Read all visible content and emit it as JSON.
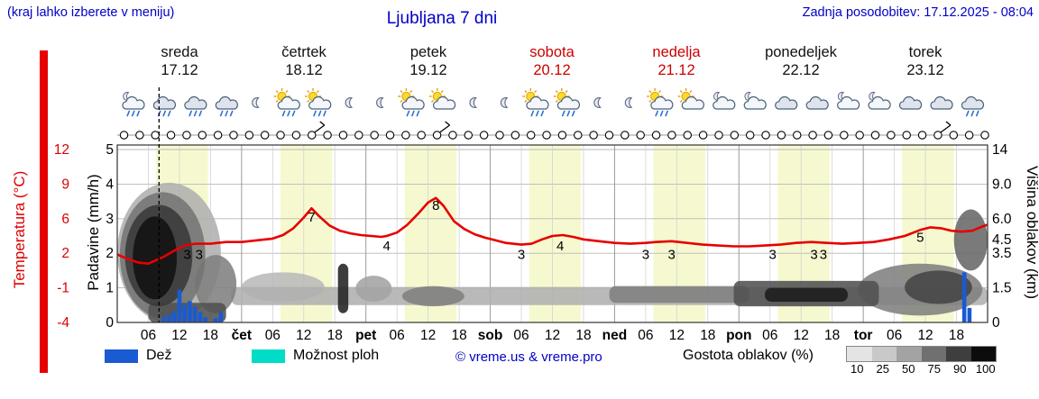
{
  "header": {
    "note": "(kraj lahko izberete v meniju)",
    "title": "Ljubljana 7 dni",
    "updated": "Zadnja posodobitev: 17.12.2025 - 08:04"
  },
  "days": [
    {
      "name": "sreda",
      "date": "17.12",
      "weekend": false
    },
    {
      "name": "četrtek",
      "date": "18.12",
      "weekend": false
    },
    {
      "name": "petek",
      "date": "19.12",
      "weekend": false
    },
    {
      "name": "sobota",
      "date": "20.12",
      "weekend": true
    },
    {
      "name": "nedelja",
      "date": "21.12",
      "weekend": true
    },
    {
      "name": "ponedeljek",
      "date": "22.12",
      "weekend": false
    },
    {
      "name": "torek",
      "date": "23.12",
      "weekend": false
    }
  ],
  "axes": {
    "temp_label": "Temperatura (°C)",
    "temp_ticks": [
      "12",
      "9",
      "6",
      "2",
      "-1",
      "-4"
    ],
    "precip_label": "Padavine (mm/h)",
    "precip_ticks": [
      "5",
      "4",
      "3",
      "2",
      "1",
      "0"
    ],
    "cloud_label": "Višina oblakov (km)",
    "cloud_ticks": [
      "14",
      "9.0",
      "6.0",
      "4.5",
      "3.5",
      "1.5",
      "0"
    ]
  },
  "legend": {
    "rain": "Dež",
    "showers": "Možnost ploh",
    "copyright": "© vreme.us & vreme.pro",
    "cloud_cover": "Gostota oblakov (%)",
    "scale": [
      "10",
      "25",
      "50",
      "75",
      "90",
      "100"
    ]
  },
  "colors": {
    "accent_blue": "#0000c8",
    "red_text": "#dd0000",
    "temp_line": "#e60000",
    "rain_bar": "#1a5ad2",
    "showers": "#00dcc8",
    "dayband": "#f6f9cf",
    "grid_minor": "#d2d2d2",
    "grid_major": "#9a9a9a",
    "frame": "#333333",
    "scale_shades": [
      "#e4e4e4",
      "#c9c9c9",
      "#a3a3a3",
      "#707070",
      "#3e3e3e",
      "#0c0c0c"
    ]
  },
  "chart_data": {
    "type": "line",
    "x_unit": "hours from 17.12 00:00",
    "now_hour": 8.07,
    "day_band_hours": [
      7.5,
      17.5
    ],
    "time_ticks": [
      "06",
      "12",
      "18",
      "čet",
      "06",
      "12",
      "18",
      "pet",
      "06",
      "12",
      "18",
      "sob",
      "06",
      "12",
      "18",
      "ned",
      "06",
      "12",
      "18",
      "pon",
      "06",
      "12",
      "18",
      "tor",
      "06",
      "12",
      "18"
    ],
    "series": [
      {
        "name": "Temperatura (°C)",
        "points": [
          [
            0,
            1.9
          ],
          [
            2,
            1.5
          ],
          [
            4,
            1.2
          ],
          [
            6,
            1.1
          ],
          [
            7,
            1.3
          ],
          [
            9,
            1.7
          ],
          [
            11,
            2.3
          ],
          [
            13,
            2.9
          ],
          [
            15,
            3.1
          ],
          [
            18,
            3.1
          ],
          [
            21,
            3.3
          ],
          [
            24,
            3.3
          ],
          [
            27,
            3.5
          ],
          [
            30,
            3.7
          ],
          [
            32,
            4.1
          ],
          [
            34,
            4.9
          ],
          [
            36,
            6.1
          ],
          [
            37.5,
            6.9
          ],
          [
            39,
            6.2
          ],
          [
            41,
            5.2
          ],
          [
            43,
            4.6
          ],
          [
            45,
            4.3
          ],
          [
            47,
            4.1
          ],
          [
            49,
            4.0
          ],
          [
            51,
            3.9
          ],
          [
            52,
            4.0
          ],
          [
            54,
            4.4
          ],
          [
            56,
            5.3
          ],
          [
            58,
            6.4
          ],
          [
            60,
            7.4
          ],
          [
            61.5,
            7.8
          ],
          [
            63,
            7.1
          ],
          [
            65,
            5.7
          ],
          [
            67,
            4.8
          ],
          [
            69,
            4.2
          ],
          [
            71,
            3.8
          ],
          [
            73,
            3.5
          ],
          [
            75,
            3.2
          ],
          [
            78,
            3.0
          ],
          [
            80,
            3.1
          ],
          [
            82,
            3.6
          ],
          [
            84,
            4.0
          ],
          [
            86,
            4.1
          ],
          [
            88,
            3.9
          ],
          [
            90,
            3.6
          ],
          [
            93,
            3.4
          ],
          [
            96,
            3.2
          ],
          [
            99,
            3.1
          ],
          [
            102,
            3.2
          ],
          [
            104,
            3.3
          ],
          [
            107,
            3.4
          ],
          [
            110,
            3.2
          ],
          [
            113,
            3.0
          ],
          [
            116,
            2.9
          ],
          [
            119,
            2.8
          ],
          [
            122,
            2.8
          ],
          [
            125,
            2.9
          ],
          [
            128,
            3.0
          ],
          [
            131,
            3.2
          ],
          [
            134,
            3.3
          ],
          [
            137,
            3.2
          ],
          [
            140,
            3.1
          ],
          [
            143,
            3.2
          ],
          [
            146,
            3.3
          ],
          [
            149,
            3.6
          ],
          [
            152,
            4.0
          ],
          [
            155,
            4.7
          ],
          [
            157,
            5.0
          ],
          [
            159,
            4.9
          ],
          [
            161,
            4.6
          ],
          [
            163,
            4.5
          ],
          [
            165,
            4.6
          ],
          [
            167,
            5.1
          ],
          [
            168,
            5.3
          ]
        ]
      }
    ],
    "temperature_labels": [
      {
        "h": 13.5,
        "v": 3
      },
      {
        "h": 15.8,
        "v": 3
      },
      {
        "h": 37.5,
        "v": 7
      },
      {
        "h": 52,
        "v": 4
      },
      {
        "h": 61.5,
        "v": 8
      },
      {
        "h": 78,
        "v": 3
      },
      {
        "h": 85.5,
        "v": 4
      },
      {
        "h": 102,
        "v": 3
      },
      {
        "h": 107,
        "v": 3
      },
      {
        "h": 126.5,
        "v": 3
      },
      {
        "h": 134.5,
        "v": 3
      },
      {
        "h": 136.3,
        "v": 3
      },
      {
        "h": 155,
        "v": 5
      }
    ],
    "precipitation_mm_h": [
      [
        9,
        0.15
      ],
      [
        10,
        0.22
      ],
      [
        11,
        0.32
      ],
      [
        12,
        0.95
      ],
      [
        13,
        0.5
      ],
      [
        14,
        0.62
      ],
      [
        15,
        0.45
      ],
      [
        16,
        0.3
      ],
      [
        17,
        0.15
      ],
      [
        19,
        0.12
      ],
      [
        20,
        0.3
      ],
      [
        163.5,
        1.45
      ],
      [
        164.5,
        0.42
      ]
    ],
    "cloud_regions": [
      {
        "shape": "ellipse",
        "h": [
          0,
          20
        ],
        "km": [
          0,
          9.2
        ],
        "d": 30
      },
      {
        "shape": "ellipse",
        "h": [
          0.5,
          17
        ],
        "km": [
          0.2,
          8.3
        ],
        "d": 55
      },
      {
        "shape": "ellipse",
        "h": [
          1.5,
          14.5
        ],
        "km": [
          0.7,
          7.2
        ],
        "d": 80
      },
      {
        "shape": "ellipse",
        "h": [
          3,
          11.5
        ],
        "km": [
          1,
          6.2
        ],
        "d": 97
      },
      {
        "shape": "ellipse",
        "h": [
          15,
          23
        ],
        "km": [
          0.4,
          3.4
        ],
        "d": 50
      },
      {
        "shape": "rect",
        "h": [
          42.6,
          44.6
        ],
        "km": [
          0.4,
          2.9
        ],
        "d": 90
      },
      {
        "shape": "rect",
        "h": [
          22,
          168
        ],
        "km": [
          0.75,
          1.55
        ],
        "d": 30
      },
      {
        "shape": "ellipse",
        "h": [
          24,
          40
        ],
        "km": [
          0.9,
          2.4
        ],
        "d": 25
      },
      {
        "shape": "ellipse",
        "h": [
          55,
          67
        ],
        "km": [
          0.7,
          1.6
        ],
        "d": 50
      },
      {
        "shape": "rect",
        "h": [
          95,
          122
        ],
        "km": [
          0.85,
          1.6
        ],
        "d": 50
      },
      {
        "shape": "rect",
        "h": [
          119,
          147
        ],
        "km": [
          0.7,
          1.9
        ],
        "d": 70
      },
      {
        "shape": "rect",
        "h": [
          125,
          141
        ],
        "km": [
          0.9,
          1.5
        ],
        "d": 92
      },
      {
        "shape": "ellipse",
        "h": [
          143,
          167
        ],
        "km": [
          0.3,
          2.9
        ],
        "d": 50
      },
      {
        "shape": "ellipse",
        "h": [
          152,
          165
        ],
        "km": [
          0.8,
          2.5
        ],
        "d": 75
      },
      {
        "shape": "ellipse",
        "h": [
          161.5,
          168
        ],
        "km": [
          2.5,
          6.8
        ],
        "d": 60
      },
      {
        "shape": "rect",
        "h": [
          6,
          21
        ],
        "km": [
          0,
          0.85
        ],
        "d": 70
      },
      {
        "shape": "ellipse",
        "h": [
          46,
          53
        ],
        "km": [
          0.9,
          2.2
        ],
        "d": 35
      }
    ],
    "icons": [
      "moon-rain",
      "cloud-rain",
      "cloud-rain",
      "cloud-rain",
      "moon",
      "sun-cloud-rain",
      "sun-cloud-rain",
      "moon",
      "moon",
      "sun-cloud-rain",
      "sun-cloud",
      "moon",
      "moon",
      "sun-cloud-rain",
      "sun-cloud-rain",
      "moon",
      "moon",
      "sun-cloud-rain",
      "sun-cloud",
      "moon-cloud",
      "moon-cloud",
      "cloud",
      "cloud",
      "moon-cloud",
      "moon-cloud",
      "cloud",
      "cloud",
      "cloud-rain"
    ],
    "wind": {
      "symbol": "calm-circle",
      "symbol_count": 56,
      "barb_indices": [
        12,
        20,
        52
      ]
    }
  }
}
